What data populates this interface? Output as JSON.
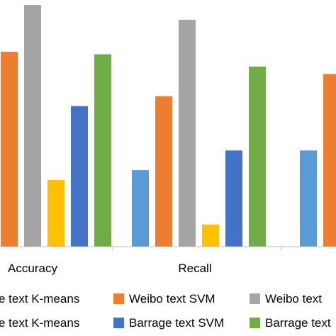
{
  "chart_data": {
    "type": "bar",
    "categories": [
      "Accuracy",
      "Recall",
      ""
    ],
    "ylim": [
      0,
      1
    ],
    "grid": false,
    "legend_position": "bottom",
    "series": [
      {
        "name": "Weibo text K-means",
        "color": "#5B9BD5",
        "values": [
          null,
          0.31,
          0.39
        ]
      },
      {
        "name": "Weibo text SVM",
        "color": "#ED7D31",
        "values": [
          0.79,
          0.61,
          0.7
        ]
      },
      {
        "name": "Weibo text",
        "color": "#A5A5A5",
        "values": [
          0.98,
          0.92,
          null
        ]
      },
      {
        "name": "Barrage text K-means",
        "color": "#FFC000",
        "values": [
          0.27,
          0.09,
          null
        ]
      },
      {
        "name": "Barrage text SVM",
        "color": "#4472C4",
        "values": [
          0.57,
          0.39,
          null
        ]
      },
      {
        "name": "Barrage text",
        "color": "#70AD47",
        "values": [
          0.78,
          0.73,
          null
        ]
      }
    ]
  },
  "legend": {
    "row1": [
      "e text K-means",
      "Weibo text SVM",
      "Weibo text"
    ],
    "row2": [
      "e text K-means",
      "Barrage text SVM",
      "Barrage text"
    ]
  }
}
